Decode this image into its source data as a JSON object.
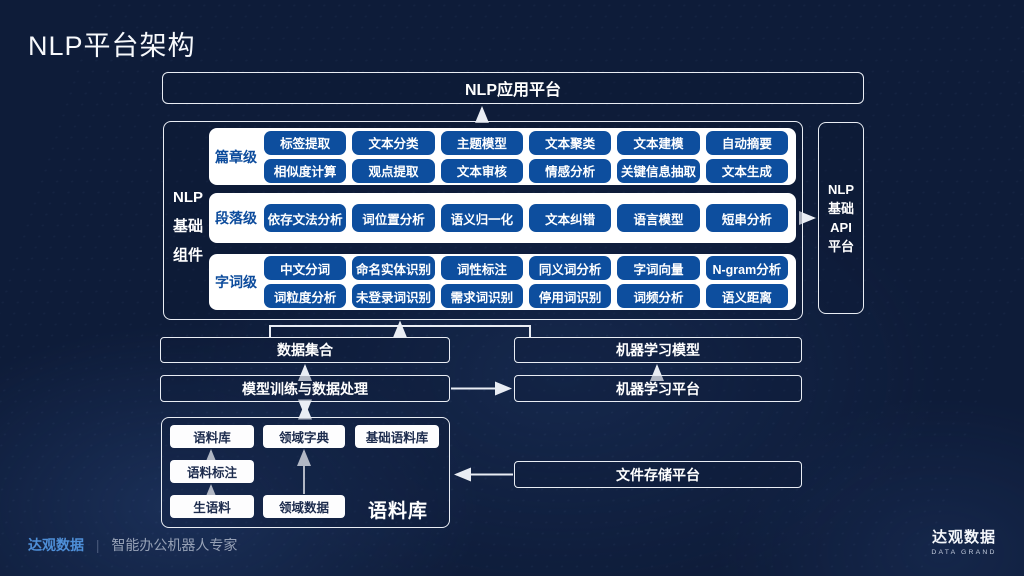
{
  "slide": {
    "title": "NLP平台架构",
    "colors": {
      "background": "#0e1c39",
      "chip_blue": "#0d4e9e",
      "brand_blue": "#4e8fd8",
      "line_white": "#e9edf4"
    },
    "footer": {
      "brand": "达观数据",
      "separator": "|",
      "tagline": "智能办公机器人专家",
      "logo_name": "达观数据",
      "logo_sub": "DATA GRAND"
    }
  },
  "diagram": {
    "app_platform": "NLP应用平台",
    "component_group": {
      "label_lines": [
        "NLP",
        "基础",
        "组件"
      ],
      "levels": [
        {
          "name": "篇章级",
          "rows": [
            [
              "标签提取",
              "文本分类",
              "主题模型",
              "文本聚类",
              "文本建模",
              "自动摘要"
            ],
            [
              "相似度计算",
              "观点提取",
              "文本审核",
              "情感分析",
              "关键信息抽取",
              "文本生成"
            ]
          ]
        },
        {
          "name": "段落级",
          "rows": [
            [
              "依存文法分析",
              "词位置分析",
              "语义归一化",
              "文本纠错",
              "语言模型",
              "短串分析"
            ]
          ]
        },
        {
          "name": "字词级",
          "rows": [
            [
              "中文分词",
              "命名实体识别",
              "词性标注",
              "同义词分析",
              "字词向量",
              "N-gram分析"
            ],
            [
              "词粒度分析",
              "未登录词识别",
              "需求词识别",
              "停用词识别",
              "词频分析",
              "语义距离"
            ]
          ]
        }
      ]
    },
    "api_platform_lines": [
      "NLP",
      "基础",
      "API",
      "平台"
    ],
    "middle": {
      "data_collection": "数据集合",
      "ml_model": "机器学习模型",
      "model_training": "模型训练与数据处理",
      "ml_platform": "机器学习平台",
      "file_storage": "文件存储平台"
    },
    "corpus": {
      "section_label": "语料库",
      "boxes": {
        "corpus_db": "语料库",
        "domain_dict": "领域字典",
        "base_corpus": "基础语料库",
        "corpus_annotation": "语料标注",
        "raw_corpus": "生语料",
        "domain_data": "领域数据"
      }
    }
  }
}
